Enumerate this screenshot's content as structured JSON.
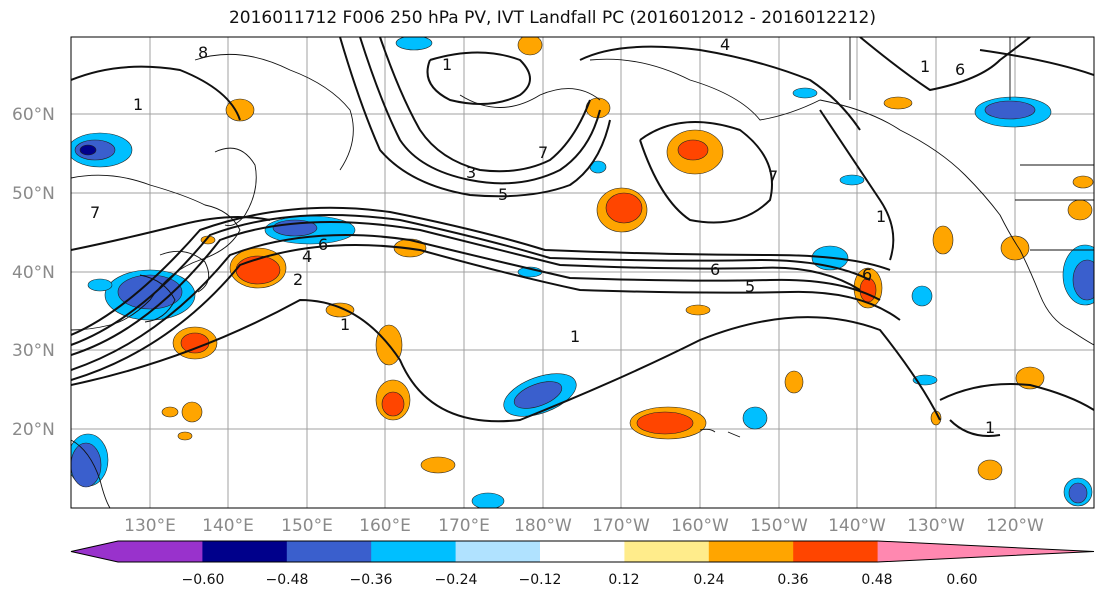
{
  "title": "2016011712 F006 250 hPa PV, IVT Landfall PC (2016012012 - 2016012212)",
  "lat_labels": [
    "60°N",
    "50°N",
    "40°N",
    "30°N",
    "20°N"
  ],
  "lon_labels": [
    "130°E",
    "140°E",
    "150°E",
    "160°E",
    "170°E",
    "180°W",
    "170°W",
    "160°W",
    "150°W",
    "140°W",
    "130°W",
    "120°W"
  ],
  "colorbar": {
    "colors": [
      "#9932cc",
      "#00008b",
      "#3a5fcd",
      "#00bfff",
      "#b0e2ff",
      "#ffffff",
      "#ffec8b",
      "#ffa500",
      "#ff4500",
      "#b22222",
      "#ff88b0"
    ],
    "tick_labels": [
      "−0.60",
      "−0.48",
      "−0.36",
      "−0.24",
      "−0.12",
      "0.12",
      "0.24",
      "0.36",
      "0.48",
      "0.60"
    ]
  },
  "contour_labels": [
    "8",
    "4",
    "1",
    "6",
    "1",
    "1",
    "7",
    "3",
    "5",
    "7",
    "6",
    "4",
    "2",
    "1",
    "6",
    "5",
    "1",
    "7",
    "6",
    "1",
    "1"
  ]
}
